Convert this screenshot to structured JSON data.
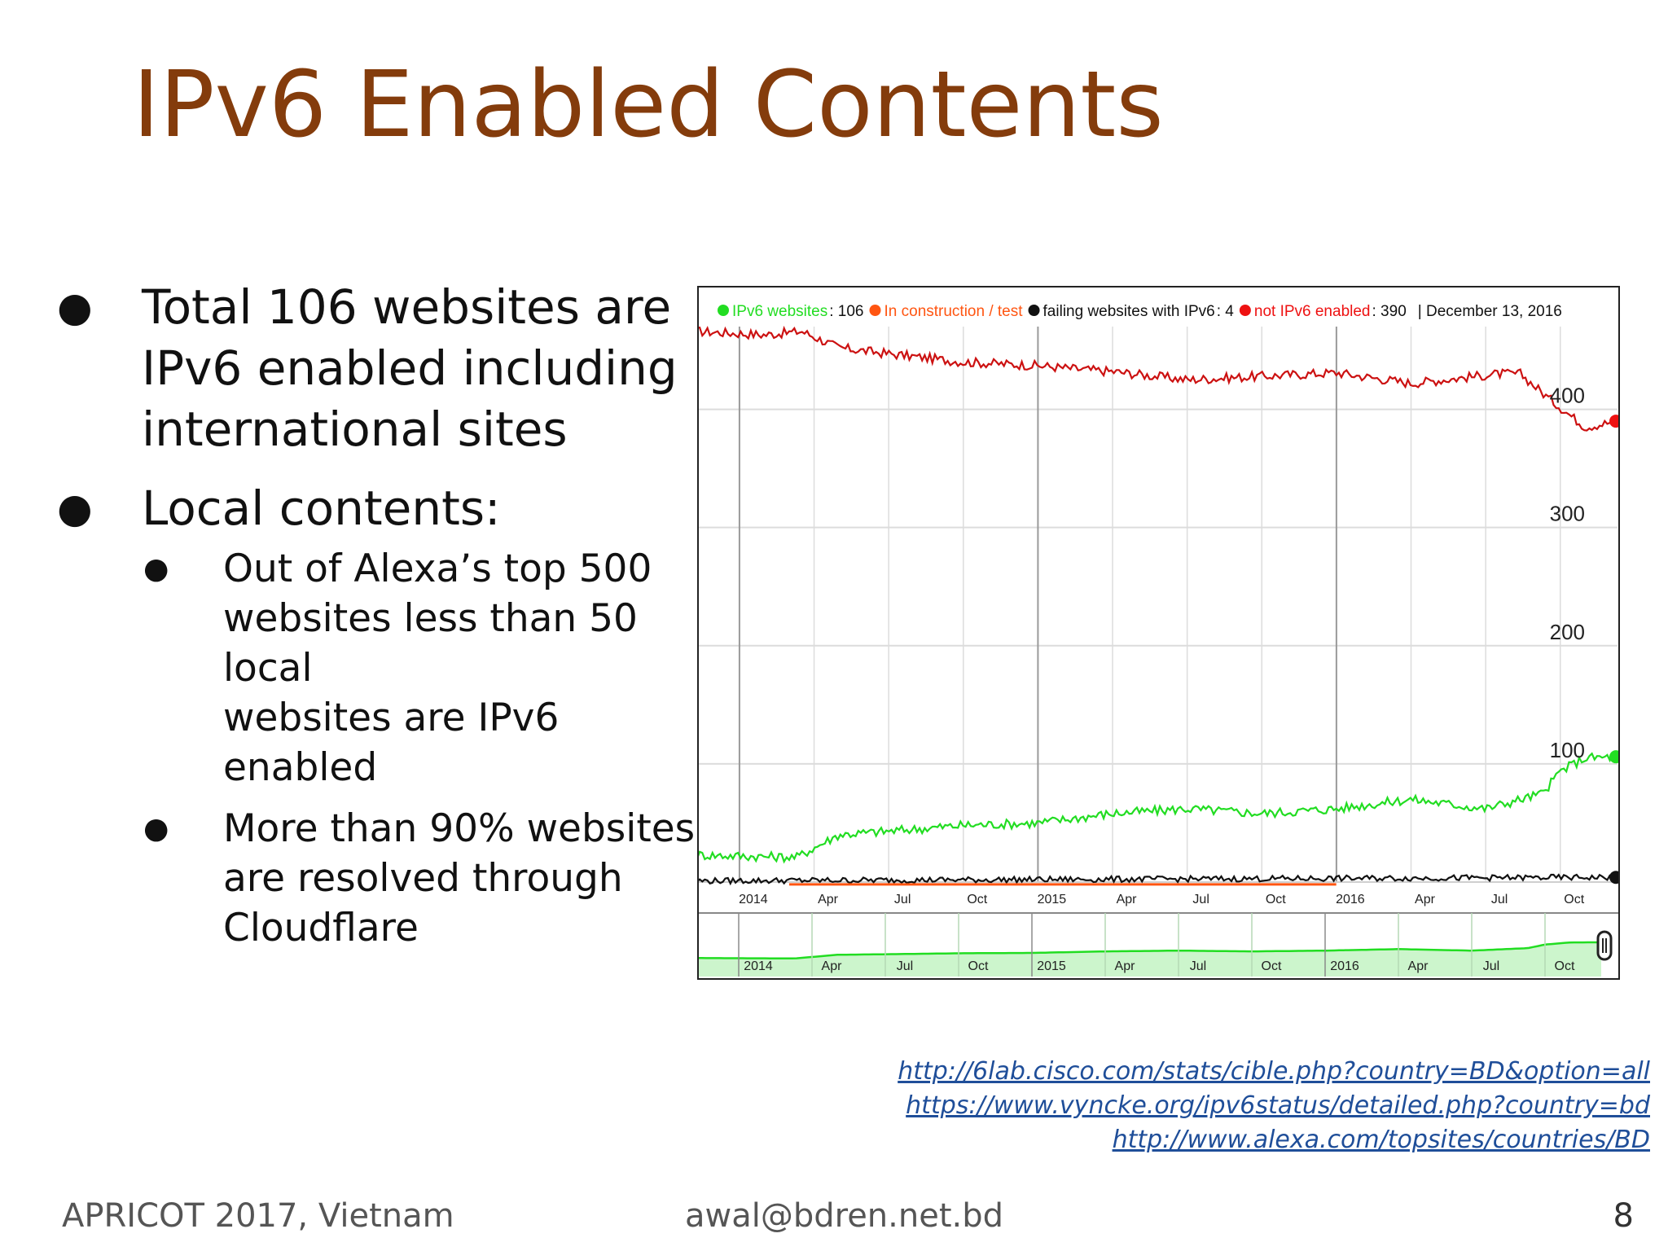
{
  "slide": {
    "title": "IPv6 Enabled Contents",
    "bullets": [
      {
        "lines": [
          "Total 106 websites are",
          "IPv6 enabled including",
          "international sites"
        ]
      },
      {
        "lines": [
          "Local contents:"
        ]
      }
    ],
    "sub_bullets": [
      {
        "lines": [
          "Out of Alexa’s top 500",
          "websites less than 50 local",
          "websites are IPv6 enabled"
        ]
      },
      {
        "lines": [
          "More than 90% websites",
          "are resolved through",
          "Cloudflare"
        ]
      }
    ],
    "references": [
      "http://6lab.cisco.com/stats/cible.php?country=BD&option=all",
      "https://www.vyncke.org/ipv6status/detailed.php?country=bd",
      "http://www.alexa.com/topsites/countries/BD"
    ],
    "footer": {
      "left": "APRICOT 2017, Vietnam",
      "center": "awal@bdren.net.bd",
      "page": "8"
    }
  },
  "chart_data": {
    "type": "line",
    "legend": [
      {
        "label": "IPv6 websites",
        "value": ": 106",
        "color": "#22dd22"
      },
      {
        "label": "In construction / test",
        "value": "",
        "color": "#ff5511"
      },
      {
        "label": "failing websites with IPv6",
        "value": ": 4",
        "color": "#111111"
      },
      {
        "label": "not IPv6 enabled",
        "value": ": 390",
        "color": "#ee1111"
      }
    ],
    "legend_date": "| December 13, 2016",
    "y_ticks": [
      "400",
      "300",
      "200",
      "100"
    ],
    "y_tick_values": [
      400,
      300,
      200,
      100
    ],
    "ylim": [
      0,
      470
    ],
    "x_ticks": [
      "2014",
      "Apr",
      "Jul",
      "Oct",
      "2015",
      "Apr",
      "Jul",
      "Oct",
      "2016",
      "Apr",
      "Jul",
      "Oct"
    ],
    "x_tick_months": [
      0,
      3,
      6,
      9,
      12,
      15,
      18,
      21,
      24,
      27,
      30,
      33
    ],
    "x_range_months": [
      -1.7,
      35.3
    ],
    "series": [
      {
        "color": "#cc1111",
        "x": [
          -1.7,
          1,
          2.5,
          4,
          6,
          9,
          12,
          13.6,
          15,
          18,
          21,
          24,
          27,
          30.5,
          31.4,
          32.5,
          34,
          35.3
        ],
        "y": [
          466,
          463,
          466,
          452,
          447,
          440,
          437,
          434,
          432,
          425,
          428,
          431,
          422,
          430,
          430,
          410,
          385,
          390
        ]
      },
      {
        "color": "#22dd22",
        "x": [
          -1.7,
          0,
          2.3,
          4,
          6,
          9,
          12,
          15,
          18,
          21,
          24,
          27,
          30,
          32.3,
          33,
          34,
          35.3
        ],
        "y": [
          23,
          22,
          21,
          40,
          43,
          48,
          50,
          58,
          62,
          58,
          62,
          70,
          62,
          75,
          94,
          105,
          106
        ]
      },
      {
        "color": "#111111",
        "x": [
          -1.7,
          35.3
        ],
        "y": [
          1,
          4
        ]
      },
      {
        "color": "#ff5511",
        "x": [
          2,
          24
        ],
        "y": [
          -2,
          -2
        ]
      }
    ],
    "endpoints": [
      {
        "value": 390,
        "color": "#ee1111"
      },
      {
        "value": 106,
        "color": "#22dd22"
      },
      {
        "value": 4,
        "color": "#111111"
      }
    ]
  }
}
